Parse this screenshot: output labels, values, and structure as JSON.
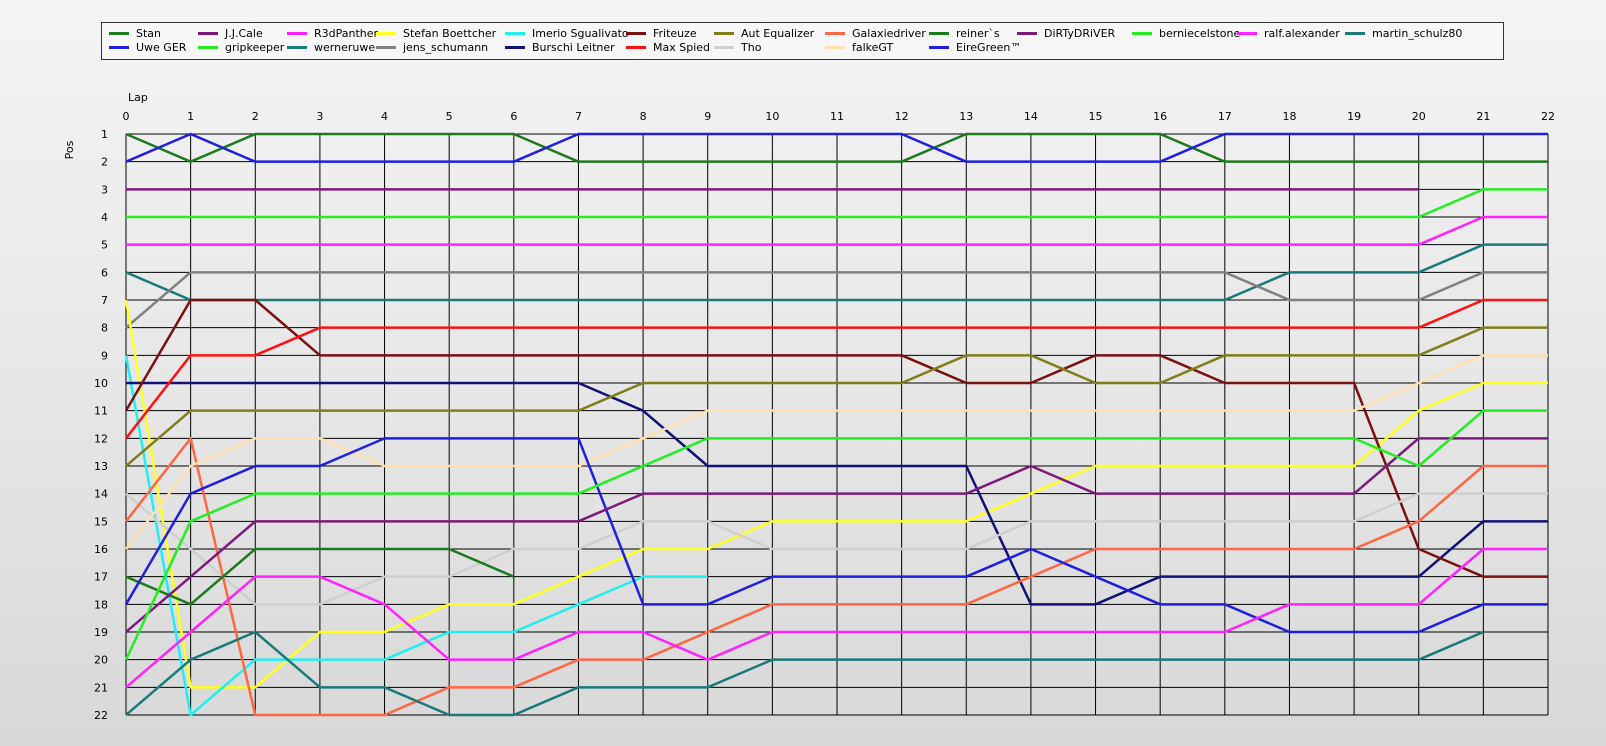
{
  "chart_data": {
    "type": "line",
    "xlabel": "Lap",
    "ylabel": "Pos",
    "x": [
      0,
      1,
      2,
      3,
      4,
      5,
      6,
      7,
      8,
      9,
      10,
      11,
      12,
      13,
      14,
      15,
      16,
      17,
      18,
      19,
      20,
      21,
      22
    ],
    "ylim": [
      1,
      22
    ],
    "y_inverted": true,
    "grid": true,
    "legend_position": "top",
    "series": [
      {
        "name": "Stan",
        "color": "#1e7a1e",
        "values": [
          1,
          2,
          1,
          1,
          1,
          1,
          1,
          2,
          2,
          2,
          2,
          2,
          2,
          1,
          1,
          1,
          1,
          2,
          2,
          2,
          2,
          2,
          2
        ]
      },
      {
        "name": "Uwe GER",
        "color": "#1f1fdd",
        "values": [
          2,
          1,
          2,
          2,
          2,
          2,
          2,
          1,
          1,
          1,
          1,
          1,
          1,
          2,
          2,
          2,
          2,
          1,
          1,
          1,
          1,
          1,
          1
        ]
      },
      {
        "name": "J.J.Cale",
        "color": "#7d1a7d",
        "values": [
          3,
          3,
          3,
          3,
          3,
          3,
          3,
          3,
          3,
          3,
          3,
          3,
          3,
          3,
          3,
          3,
          3,
          3,
          3,
          3,
          3,
          null,
          null
        ]
      },
      {
        "name": "gripkeeper",
        "color": "#22ee22",
        "values": [
          4,
          4,
          4,
          4,
          4,
          4,
          4,
          4,
          4,
          4,
          4,
          4,
          4,
          4,
          4,
          4,
          4,
          4,
          4,
          4,
          4,
          3,
          3
        ]
      },
      {
        "name": "R3dPanther",
        "color": "#ff22ff",
        "values": [
          5,
          5,
          5,
          5,
          5,
          5,
          5,
          5,
          5,
          5,
          5,
          5,
          5,
          5,
          5,
          5,
          5,
          5,
          5,
          5,
          5,
          4,
          4
        ]
      },
      {
        "name": "werneruwe",
        "color": "#1a7a7a",
        "values": [
          6,
          7,
          7,
          7,
          7,
          7,
          7,
          7,
          7,
          7,
          7,
          7,
          7,
          7,
          7,
          7,
          7,
          7,
          6,
          6,
          6,
          5,
          5
        ]
      },
      {
        "name": "jens_schumann",
        "color": "#808080",
        "values": [
          8,
          6,
          6,
          6,
          6,
          6,
          6,
          6,
          6,
          6,
          6,
          6,
          6,
          6,
          6,
          6,
          6,
          6,
          7,
          7,
          7,
          6,
          6
        ]
      },
      {
        "name": "Stefan Boettcher",
        "color": "#ffff22",
        "values": [
          7,
          21,
          21,
          19,
          19,
          18,
          18,
          17,
          16,
          16,
          15,
          15,
          15,
          15,
          14,
          13,
          13,
          13,
          13,
          13,
          11,
          10,
          10
        ]
      },
      {
        "name": "Imerio Sgualivato",
        "color": "#22eeee",
        "values": [
          9,
          22,
          20,
          20,
          20,
          19,
          19,
          18,
          17,
          17,
          null,
          null,
          null,
          null,
          null,
          null,
          null,
          null,
          null,
          null,
          null,
          null,
          null
        ]
      },
      {
        "name": "Burschi Leitner",
        "color": "#111177",
        "values": [
          10,
          10,
          10,
          10,
          10,
          10,
          10,
          10,
          11,
          13,
          13,
          13,
          13,
          13,
          18,
          18,
          17,
          17,
          17,
          17,
          17,
          15,
          15
        ]
      },
      {
        "name": "Friteuze",
        "color": "#7a1111",
        "values": [
          11,
          7,
          7,
          9,
          9,
          9,
          9,
          9,
          9,
          9,
          9,
          9,
          9,
          10,
          10,
          9,
          9,
          10,
          10,
          10,
          16,
          17,
          17
        ]
      },
      {
        "name": "Max Spied",
        "color": "#ff1111",
        "values": [
          12,
          9,
          9,
          8,
          8,
          8,
          8,
          8,
          8,
          8,
          8,
          8,
          8,
          8,
          8,
          8,
          8,
          8,
          8,
          8,
          8,
          7,
          7
        ]
      },
      {
        "name": "Aut Equalizer",
        "color": "#7f7f1a",
        "values": [
          13,
          11,
          11,
          11,
          11,
          11,
          11,
          11,
          10,
          10,
          10,
          10,
          10,
          9,
          9,
          10,
          10,
          9,
          9,
          9,
          9,
          8,
          8
        ]
      },
      {
        "name": "Tho",
        "color": "#cfcfcf",
        "values": [
          14,
          16,
          18,
          18,
          17,
          17,
          16,
          16,
          15,
          15,
          16,
          16,
          16,
          16,
          15,
          15,
          15,
          15,
          15,
          15,
          14,
          14,
          14
        ]
      },
      {
        "name": "Galaxiedriver",
        "color": "#ff6644",
        "values": [
          15,
          12,
          22,
          22,
          22,
          21,
          21,
          20,
          20,
          19,
          18,
          18,
          18,
          18,
          17,
          16,
          16,
          16,
          16,
          16,
          15,
          13,
          13
        ]
      },
      {
        "name": "falkeGT",
        "color": "#ffe0b0",
        "values": [
          16,
          13,
          12,
          12,
          13,
          13,
          13,
          13,
          12,
          11,
          11,
          11,
          11,
          11,
          11,
          11,
          11,
          11,
          11,
          11,
          10,
          9,
          9
        ]
      },
      {
        "name": "reiner`s",
        "color": "#1e7a1e",
        "values": [
          17,
          18,
          16,
          16,
          16,
          16,
          17,
          null,
          null,
          null,
          null,
          null,
          null,
          null,
          null,
          null,
          null,
          null,
          null,
          null,
          null,
          null,
          null
        ]
      },
      {
        "name": "EireGreen™",
        "color": "#1f1fdd",
        "values": [
          18,
          14,
          13,
          13,
          12,
          12,
          12,
          12,
          18,
          18,
          17,
          17,
          17,
          17,
          16,
          17,
          18,
          18,
          19,
          19,
          19,
          18,
          18
        ]
      },
      {
        "name": "DiRTyDRiVER",
        "color": "#7d1a7d",
        "values": [
          19,
          17,
          15,
          15,
          15,
          15,
          15,
          15,
          14,
          14,
          14,
          14,
          14,
          14,
          13,
          14,
          14,
          14,
          14,
          14,
          12,
          12,
          12
        ]
      },
      {
        "name": "berniecelstone",
        "color": "#22ee22",
        "values": [
          20,
          15,
          14,
          14,
          14,
          14,
          14,
          14,
          13,
          12,
          12,
          12,
          12,
          12,
          12,
          12,
          12,
          12,
          12,
          12,
          13,
          11,
          11
        ]
      },
      {
        "name": "ralf.alexander",
        "color": "#ff22ff",
        "values": [
          21,
          19,
          17,
          17,
          18,
          20,
          20,
          19,
          19,
          20,
          19,
          19,
          19,
          19,
          19,
          19,
          19,
          19,
          18,
          18,
          18,
          16,
          16
        ]
      },
      {
        "name": "martin_schulz80",
        "color": "#1a7a7a",
        "values": [
          22,
          20,
          19,
          21,
          21,
          22,
          22,
          21,
          21,
          21,
          20,
          20,
          20,
          20,
          20,
          20,
          20,
          20,
          20,
          20,
          20,
          19,
          null
        ]
      }
    ]
  }
}
